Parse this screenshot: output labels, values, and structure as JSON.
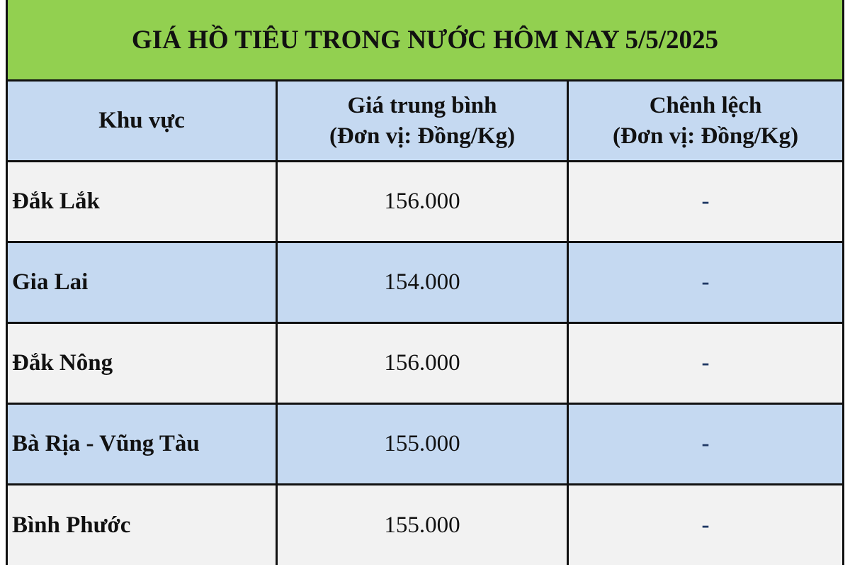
{
  "title": "GIÁ HỒ TIÊU TRONG NƯỚC HÔM NAY 5/5/2025",
  "colors": {
    "title_bg": "#92d050",
    "header_bg": "#c5d9f1",
    "alt_row_bg": "#c5d9f1",
    "row_bg": "#f2f2f2"
  },
  "headers": {
    "region": "Khu vực",
    "avg_price_1": "Giá trung bình",
    "avg_price_2": "(Đơn vị: Đồng/Kg)",
    "change_1": "Chênh lệch",
    "change_2": "(Đơn vị: Đồng/Kg)"
  },
  "rows": [
    {
      "region": "Đắk Lắk",
      "price": "156.000",
      "change": "-"
    },
    {
      "region": "Gia Lai",
      "price": "154.000",
      "change": "-"
    },
    {
      "region": "Đắk Nông",
      "price": "156.000",
      "change": "-"
    },
    {
      "region": "Bà Rịa - Vũng Tàu",
      "price": "155.000",
      "change": "-"
    },
    {
      "region": "Bình Phước",
      "price": "155.000",
      "change": "-"
    }
  ]
}
